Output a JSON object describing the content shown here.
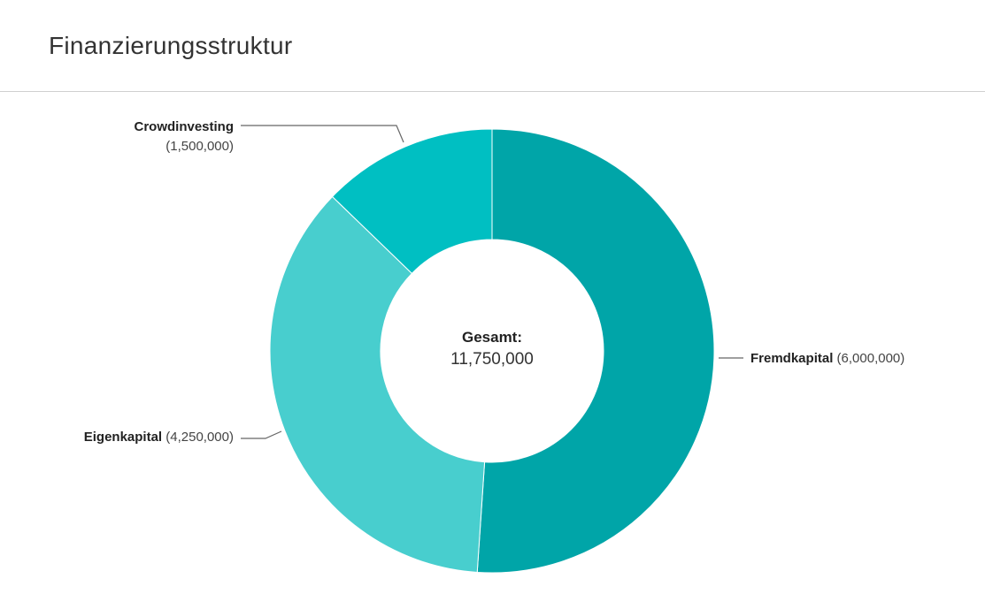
{
  "header": {
    "title": "Finanzierungsstruktur"
  },
  "chart_data": {
    "type": "pie",
    "variant": "donut",
    "title": "Finanzierungsstruktur",
    "slices": [
      {
        "label": "Fremdkapital",
        "value": 6000000,
        "value_text": "(6,000,000)",
        "color": "#00A5A8"
      },
      {
        "label": "Eigenkapital",
        "value": 4250000,
        "value_text": "(4,250,000)",
        "color": "#48CECE"
      },
      {
        "label": "Crowdinvesting",
        "value": 1500000,
        "value_text": "(1,500,000)",
        "color": "#00BFC2"
      }
    ],
    "center_label": "Gesamt:",
    "center_value": "11,750,000"
  }
}
